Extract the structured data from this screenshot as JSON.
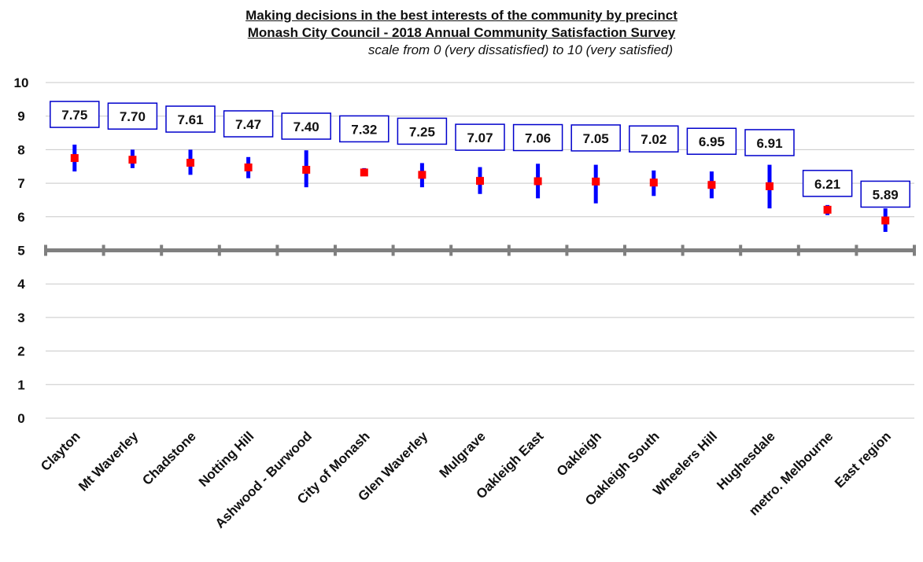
{
  "chart_data": {
    "type": "scatter",
    "title": "Making decisions in the best interests of the community by precinct",
    "subtitle": "Monash City Council - 2018 Annual Community Satisfaction Survey",
    "note": "scale from 0 (very dissatisfied) to 10 (very satisfied)",
    "xlabel": "",
    "ylabel": "",
    "ylim": [
      0,
      10
    ],
    "yticks": [
      0,
      1,
      2,
      3,
      4,
      5,
      6,
      7,
      8,
      9,
      10
    ],
    "grid": true,
    "reference_line": 5,
    "categories": [
      "Clayton",
      "Mt Waverley",
      "Chadstone",
      "Notting Hill",
      "Ashwood - Burwood",
      "City of Monash",
      "Glen Waverley",
      "Mulgrave",
      "Oakleigh East",
      "Oakleigh",
      "Oakleigh South",
      "Wheelers Hill",
      "Hughesdale",
      "metro. Melbourne",
      "East region"
    ],
    "values": [
      7.75,
      7.7,
      7.61,
      7.47,
      7.4,
      7.32,
      7.25,
      7.07,
      7.06,
      7.05,
      7.02,
      6.95,
      6.91,
      6.21,
      5.89
    ],
    "value_labels": [
      "7.75",
      "7.70",
      "7.61",
      "7.47",
      "7.40",
      "7.32",
      "7.25",
      "7.07",
      "7.06",
      "7.05",
      "7.02",
      "6.95",
      "6.91",
      "6.21",
      "5.89"
    ],
    "ci_low": [
      7.35,
      7.45,
      7.25,
      7.15,
      6.88,
      7.22,
      6.88,
      6.68,
      6.55,
      6.4,
      6.62,
      6.55,
      6.25,
      6.05,
      5.55
    ],
    "ci_high": [
      8.15,
      8.0,
      8.0,
      7.78,
      7.98,
      7.45,
      7.6,
      7.48,
      7.58,
      7.55,
      7.38,
      7.35,
      7.55,
      6.35,
      6.25
    ],
    "colors": {
      "point": "#ff0000",
      "ci": "#0000ff",
      "label_border": "#0000cc",
      "grid": "#c8c8c8",
      "ref_line": "#7f7f7f"
    }
  }
}
